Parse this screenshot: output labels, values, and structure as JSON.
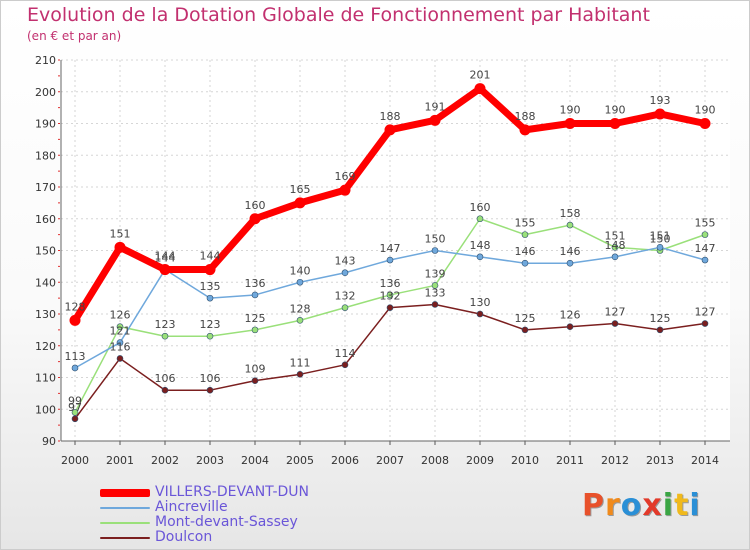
{
  "header": {
    "title": "Evolution de la Dotation Globale de Fonctionnement par Habitant",
    "subtitle": "(en € et par an)"
  },
  "logo": {
    "text": "Proxiti",
    "colors": [
      "#e8512b",
      "#f08a1c",
      "#2a8fd6",
      "#e23a2a",
      "#3aa544",
      "#f0b91c",
      "#2a8fd6"
    ]
  },
  "chart_data": {
    "type": "line",
    "x": [
      2000,
      2001,
      2002,
      2003,
      2004,
      2005,
      2006,
      2007,
      2008,
      2009,
      2010,
      2011,
      2012,
      2013,
      2014
    ],
    "ylim": [
      90,
      210
    ],
    "yticks": [
      90,
      100,
      110,
      120,
      130,
      140,
      150,
      160,
      170,
      180,
      190,
      200,
      210
    ],
    "grid": true,
    "legend_position": "bottom-left",
    "series": [
      {
        "name": "VILLERS-DEVANT-DUN",
        "color": "#ff0000",
        "values": [
          128,
          151,
          144,
          144,
          160,
          165,
          169,
          188,
          191,
          201,
          188,
          190,
          190,
          193,
          190
        ]
      },
      {
        "name": "Aincreville",
        "color": "#6fa8dc",
        "values": [
          113,
          121,
          144,
          135,
          136,
          140,
          143,
          147,
          150,
          148,
          146,
          146,
          148,
          151,
          147
        ]
      },
      {
        "name": "Mont-devant-Sassey",
        "color": "#9ae07a",
        "values": [
          99,
          126,
          123,
          123,
          125,
          128,
          132,
          136,
          139,
          160,
          155,
          158,
          151,
          150,
          155
        ]
      },
      {
        "name": "Doulcon",
        "color": "#7b1f1f",
        "values": [
          97,
          116,
          106,
          106,
          109,
          111,
          114,
          132,
          133,
          130,
          125,
          126,
          127,
          125,
          127
        ]
      }
    ]
  }
}
